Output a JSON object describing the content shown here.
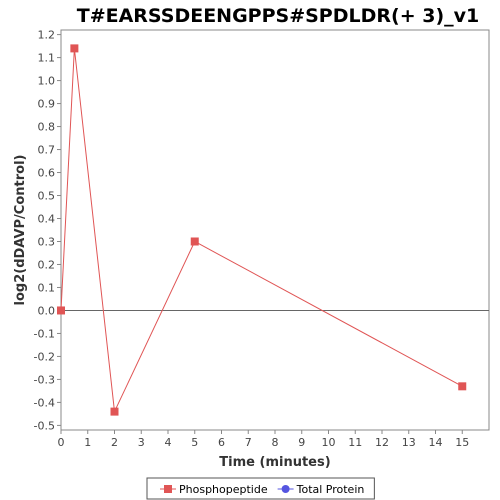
{
  "chart_data": {
    "type": "line",
    "title": "T#EARSSDEENGPPS#SPDLDR(+ 3)_v1",
    "xlabel": "Time (minutes)",
    "ylabel": "log2(dDAVP/Control)",
    "xlim": [
      0,
      16
    ],
    "ylim": [
      -0.52,
      1.22
    ],
    "xticks": [
      0,
      1,
      2,
      3,
      4,
      5,
      6,
      7,
      8,
      9,
      10,
      11,
      12,
      13,
      14,
      15
    ],
    "yticks": [
      -0.5,
      -0.4,
      -0.3,
      -0.2,
      -0.1,
      0.0,
      0.1,
      0.2,
      0.3,
      0.4,
      0.5,
      0.6,
      0.7,
      0.8,
      0.9,
      1.0,
      1.1,
      1.2
    ],
    "ytick_labels": [
      "-0.5",
      "-0.4",
      "-0.3",
      "-0.2",
      "-0.1",
      "0.0",
      "0.1",
      "0.2",
      "0.3",
      "0.4",
      "0.5",
      "0.6",
      "0.7",
      "0.8",
      "0.9",
      "1.0",
      "1.1",
      "1.2"
    ],
    "grid": false,
    "zero_line": true,
    "legend_position": "bottom-center",
    "series": [
      {
        "name": "Phosphopeptide",
        "color": "#e05555",
        "marker": "square",
        "x": [
          0,
          0.5,
          2,
          5,
          15
        ],
        "y": [
          0.0,
          1.14,
          -0.44,
          0.3,
          -0.33
        ]
      },
      {
        "name": "Total Protein",
        "color": "#5555e0",
        "marker": "circle",
        "x": [],
        "y": []
      }
    ]
  }
}
